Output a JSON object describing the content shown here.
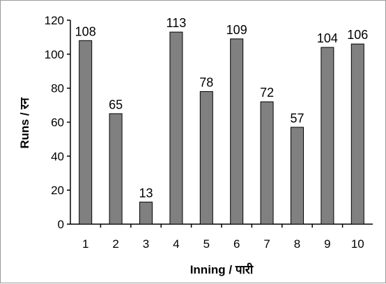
{
  "chart_data": {
    "type": "bar",
    "title": "",
    "xlabel": "Inning / पारी",
    "ylabel": "Runs / रन",
    "categories": [
      "1",
      "2",
      "3",
      "4",
      "5",
      "6",
      "7",
      "8",
      "9",
      "10"
    ],
    "values": [
      108,
      65,
      13,
      113,
      78,
      109,
      72,
      57,
      104,
      106
    ],
    "data_labels": [
      "108",
      "65",
      "13",
      "113",
      "78",
      "109",
      "72",
      "57",
      "104",
      "106"
    ],
    "ylim": [
      0,
      120
    ],
    "yticks": [
      0,
      20,
      40,
      60,
      80,
      100,
      120
    ],
    "grid": false,
    "legend": "none",
    "bar_color": "#808080",
    "bar_outline": "#000000"
  }
}
